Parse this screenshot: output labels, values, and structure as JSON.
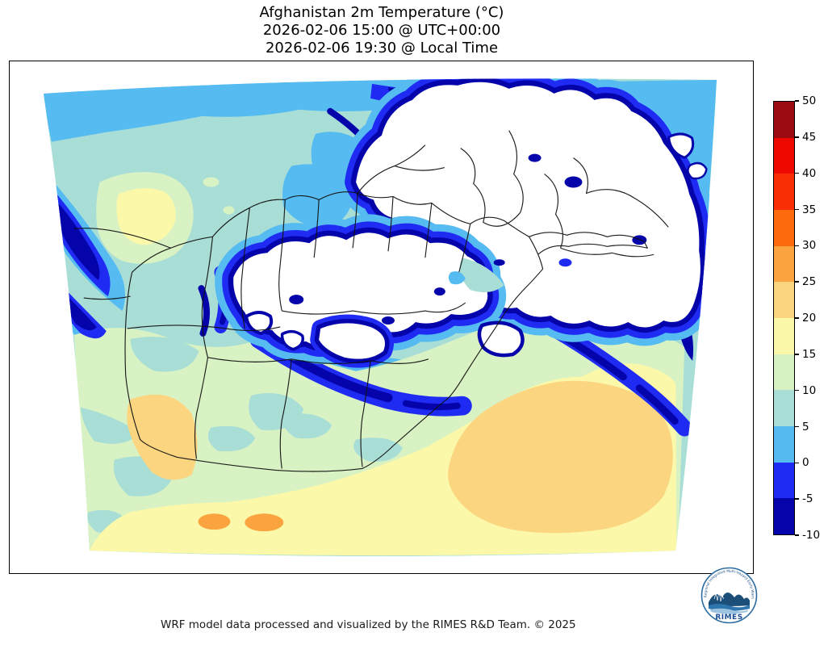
{
  "header": {
    "title_line1": "Afghanistan 2m Temperature (°C)",
    "title_line2": "2026-02-06 15:00 @ UTC+00:00",
    "title_line3": "2026-02-06 19:30 @ Local Time"
  },
  "colorbar": {
    "tick_labels": [
      "50",
      "45",
      "40",
      "35",
      "30",
      "25",
      "20",
      "15",
      "10",
      "5",
      "0",
      "-5",
      "-10"
    ],
    "segments_top_to_bottom": [
      {
        "from": 45,
        "to": 50,
        "color": "#9d0b12"
      },
      {
        "from": 40,
        "to": 45,
        "color": "#ee0900"
      },
      {
        "from": 35,
        "to": 40,
        "color": "#fa2e04"
      },
      {
        "from": 30,
        "to": 35,
        "color": "#fc6a0d"
      },
      {
        "from": 25,
        "to": 30,
        "color": "#faa33f"
      },
      {
        "from": 20,
        "to": 25,
        "color": "#fbd580"
      },
      {
        "from": 15,
        "to": 20,
        "color": "#fbf8aa"
      },
      {
        "from": 10,
        "to": 15,
        "color": "#d9f2c4"
      },
      {
        "from": 5,
        "to": 10,
        "color": "#a8ded6"
      },
      {
        "from": 0,
        "to": 5,
        "color": "#55bbf0"
      },
      {
        "from": -5,
        "to": 0,
        "color": "#1f2bf2"
      },
      {
        "from": -10,
        "to": -5,
        "color": "#0504aa"
      }
    ]
  },
  "map": {
    "below_scale_fill": "#ffffff",
    "admin_boundary_color": "#111111"
  },
  "logo": {
    "name": "RIMES",
    "ring_text": "Regional Integrated Multi-Hazard Early Warning System"
  },
  "footer": {
    "credit": "WRF model data processed and visualized by the RIMES R&D Team. © 2025"
  }
}
